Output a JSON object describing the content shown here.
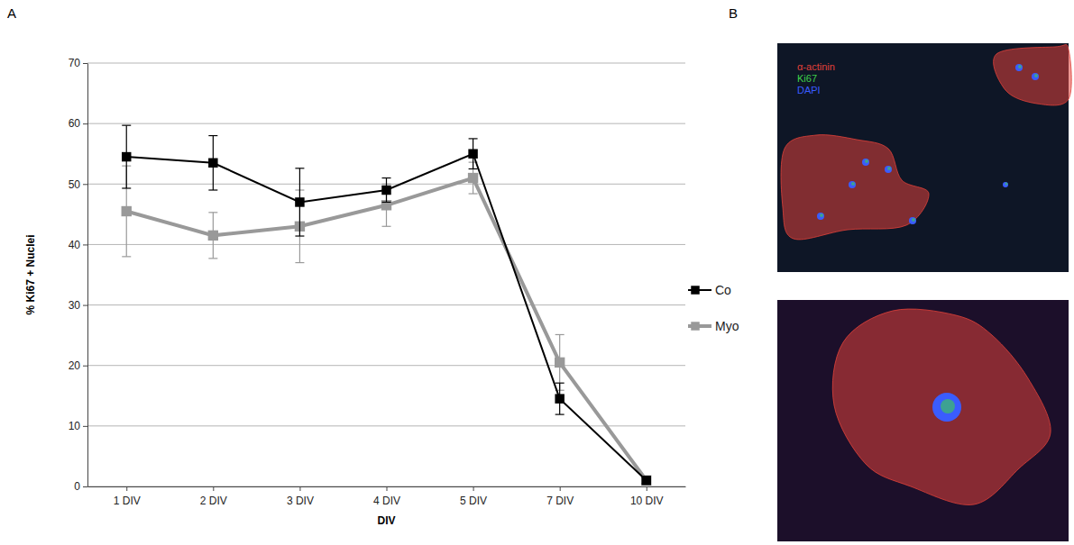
{
  "panel_labels": [
    "A",
    "B"
  ],
  "chart_data": {
    "type": "line",
    "x_label": "DIV",
    "y_label": "% Ki67 + Nuclei",
    "categories": [
      "1 DIV",
      "2 DIV",
      "3 DIV",
      "4 DIV",
      "5 DIV",
      "7 DIV",
      "10 DIV"
    ],
    "series": [
      {
        "name": "Co",
        "color": "#000000",
        "marker": "square",
        "line_style": "solid",
        "values": [
          54.5,
          53.5,
          47,
          49,
          55,
          14.5,
          1
        ],
        "errors": [
          5.2,
          4.5,
          5.6,
          2,
          2.5,
          2.6,
          0.5
        ]
      },
      {
        "name": "Myo",
        "color": "#999999",
        "marker": "square",
        "line_style": "solid",
        "values": [
          45.5,
          41.5,
          43,
          46.5,
          51,
          20.5,
          1
        ],
        "errors": [
          7.5,
          3.8,
          6,
          3.5,
          2.6,
          4.6,
          0.5
        ]
      }
    ],
    "ylim": [
      0,
      70
    ],
    "yticks": [
      0,
      10,
      20,
      30,
      40,
      50,
      60,
      70
    ],
    "grid": true,
    "legend": "right"
  },
  "image_panel": {
    "labels": [
      "α-actinin",
      "Ki67",
      "DAPI"
    ],
    "colors": [
      "#e0413a",
      "#3fd14a",
      "#3a5cff"
    ]
  }
}
